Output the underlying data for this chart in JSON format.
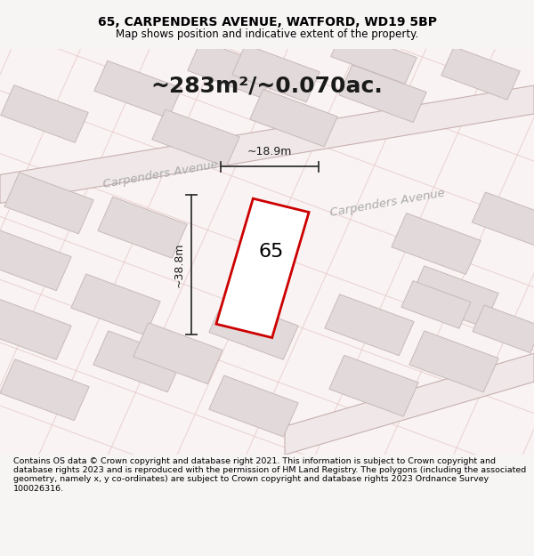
{
  "title_line1": "65, CARPENDERS AVENUE, WATFORD, WD19 5BP",
  "title_line2": "Map shows position and indicative extent of the property.",
  "area_text": "~283m²/~0.070ac.",
  "label_65": "65",
  "dim_length": "~38.8m",
  "dim_width": "~18.9m",
  "footer_text": "Contains OS data © Crown copyright and database right 2021. This information is subject to Crown copyright and database rights 2023 and is reproduced with the permission of HM Land Registry. The polygons (including the associated geometry, namely x, y co-ordinates) are subject to Crown copyright and database rights 2023 Ordnance Survey 100026316.",
  "bg_color": "#f7f4f4",
  "map_bg": "#f9f6f6",
  "building_fill": "#e2dada",
  "building_edge": "#c8b8b8",
  "highlight_fill": "#ffffff",
  "highlight_edge": "#cc0000",
  "grid_line_color": "#e8c8c8",
  "dim_line_color": "#333333",
  "street_color": "#c8b0b0",
  "street_label_color": "#aaaaaa",
  "street_label": "Carpenders Avenue"
}
